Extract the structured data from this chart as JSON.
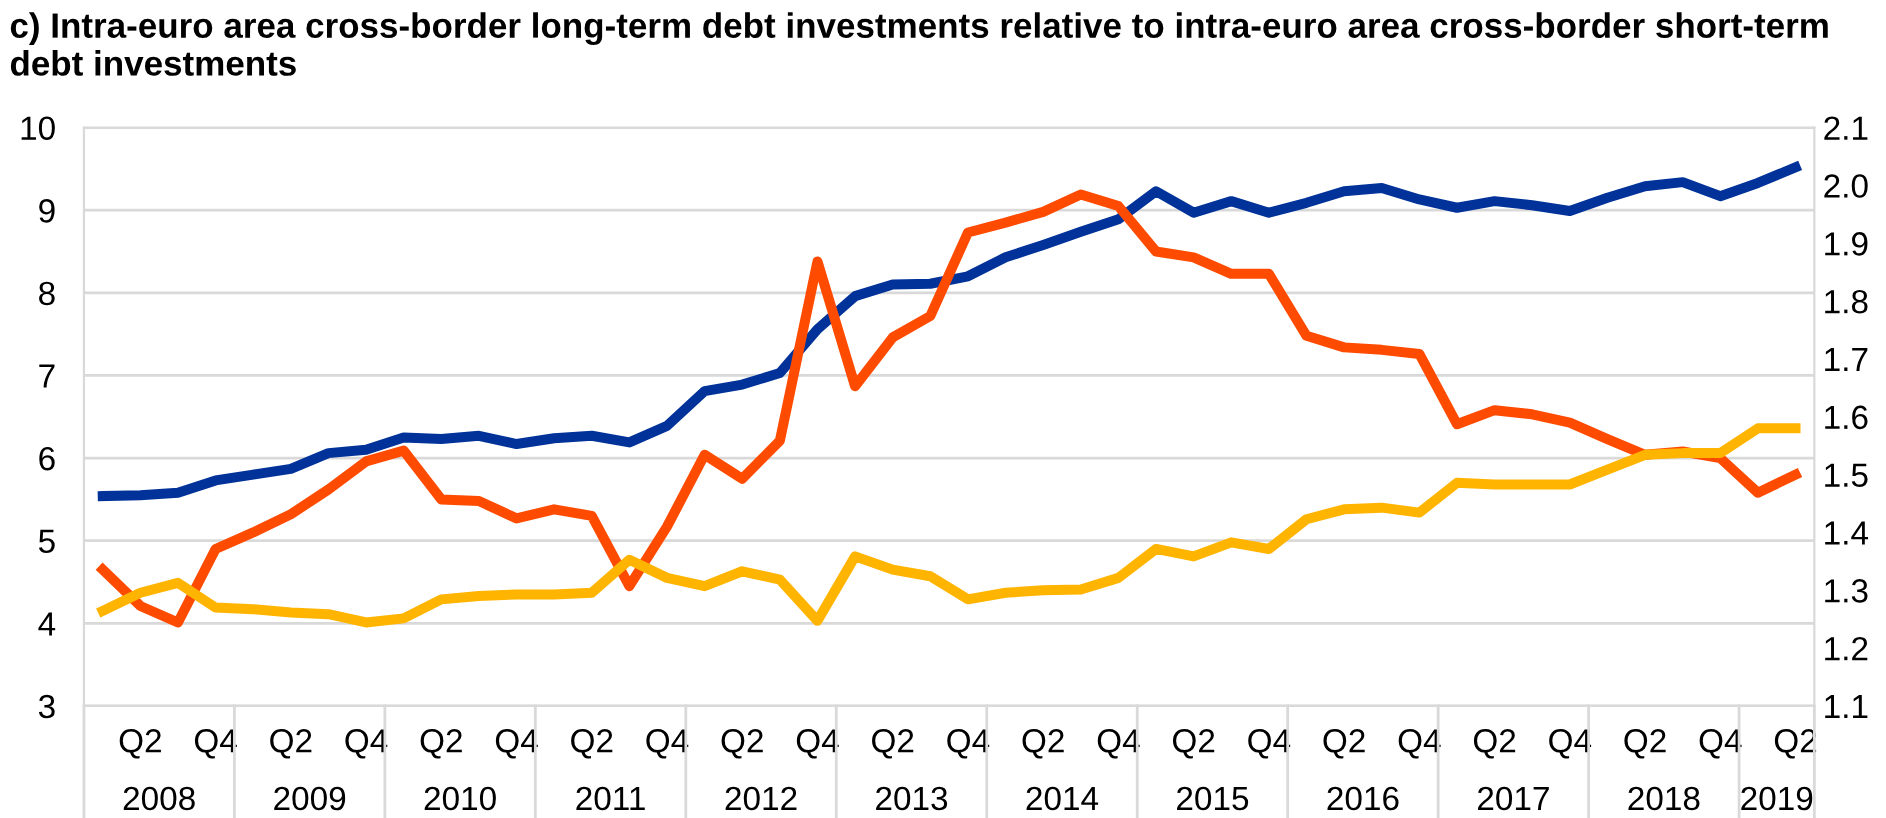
{
  "chart_data": {
    "type": "line",
    "title": "c) Intra-euro area cross-border long-term debt investments relative to intra-euro area cross-border short-term debt investments",
    "categories": [
      null,
      "Q2",
      null,
      "Q4",
      null,
      "Q2",
      null,
      "Q4",
      null,
      "Q2",
      null,
      "Q4",
      null,
      "Q2",
      null,
      "Q4",
      null,
      "Q2",
      null,
      "Q4",
      null,
      "Q2",
      null,
      "Q4",
      null,
      "Q2",
      null,
      "Q4",
      null,
      "Q2",
      null,
      "Q4",
      null,
      "Q2",
      null,
      "Q4",
      null,
      "Q2",
      null,
      "Q4",
      null,
      "Q2",
      null,
      "Q4",
      null,
      "Q2"
    ],
    "series": [
      {
        "color": "#003299",
        "values": [
          5.54,
          5.55,
          5.58,
          5.73,
          5.8,
          5.87,
          6.06,
          6.1,
          6.25,
          6.23,
          6.27,
          6.17,
          6.24,
          6.27,
          6.19,
          6.39,
          6.81,
          6.89,
          7.03,
          7.56,
          7.96,
          8.1,
          8.11,
          8.2,
          8.43,
          8.58,
          8.74,
          8.89,
          9.23,
          8.97,
          9.11,
          8.97,
          9.09,
          9.23,
          9.27,
          9.13,
          9.03,
          9.11,
          9.06,
          8.99,
          9.15,
          9.29,
          9.34,
          9.17,
          9.33,
          9.52
        ]
      },
      {
        "color": "#ff4b00",
        "values": [
          4.65,
          4.21,
          4.01,
          4.9,
          5.1,
          5.32,
          5.62,
          5.96,
          6.09,
          5.5,
          5.48,
          5.27,
          5.38,
          5.3,
          4.45,
          5.17,
          6.04,
          5.75,
          6.21,
          8.38,
          6.87,
          7.46,
          7.72,
          8.73,
          8.85,
          8.98,
          9.19,
          9.05,
          8.5,
          8.43,
          8.23,
          8.23,
          7.48,
          7.34,
          7.31,
          7.26,
          6.41,
          6.58,
          6.53,
          6.43,
          6.23,
          6.04,
          6.08,
          6.0,
          5.58,
          5.8
        ]
      },
      {
        "color": "#ffb400",
        "values": [
          4.15,
          4.37,
          4.49,
          4.19,
          4.17,
          4.13,
          4.11,
          4.01,
          4.06,
          4.29,
          4.33,
          4.35,
          4.35,
          4.37,
          4.77,
          4.55,
          4.45,
          4.63,
          4.53,
          4.03,
          4.81,
          4.65,
          4.57,
          4.29,
          4.37,
          4.4,
          4.41,
          4.55,
          4.9,
          4.81,
          4.98,
          4.9,
          5.26,
          5.38,
          5.4,
          5.34,
          5.7,
          5.68,
          5.68,
          5.68,
          5.86,
          6.04,
          6.06,
          6.06,
          6.36,
          6.36
        ]
      }
    ],
    "ylim": [
      3,
      10
    ],
    "yticks": [
      3,
      4,
      5,
      6,
      7,
      8,
      9,
      10
    ],
    "y2lim": [
      1.1,
      2.1
    ],
    "y2ticks": [
      1.1,
      1.2,
      1.3,
      1.4,
      1.5,
      1.6,
      1.7,
      1.8,
      1.9,
      {
        "value": 2.0,
        "label": "2.0"
      },
      2.1
    ],
    "annotations": [
      "2008",
      "2009",
      "2010",
      "2011",
      "2012",
      "2013",
      "2014",
      "2015",
      "2016",
      "2017",
      "2018",
      "2019"
    ],
    "grid": true,
    "marker": "none",
    "line_style": "solid"
  }
}
